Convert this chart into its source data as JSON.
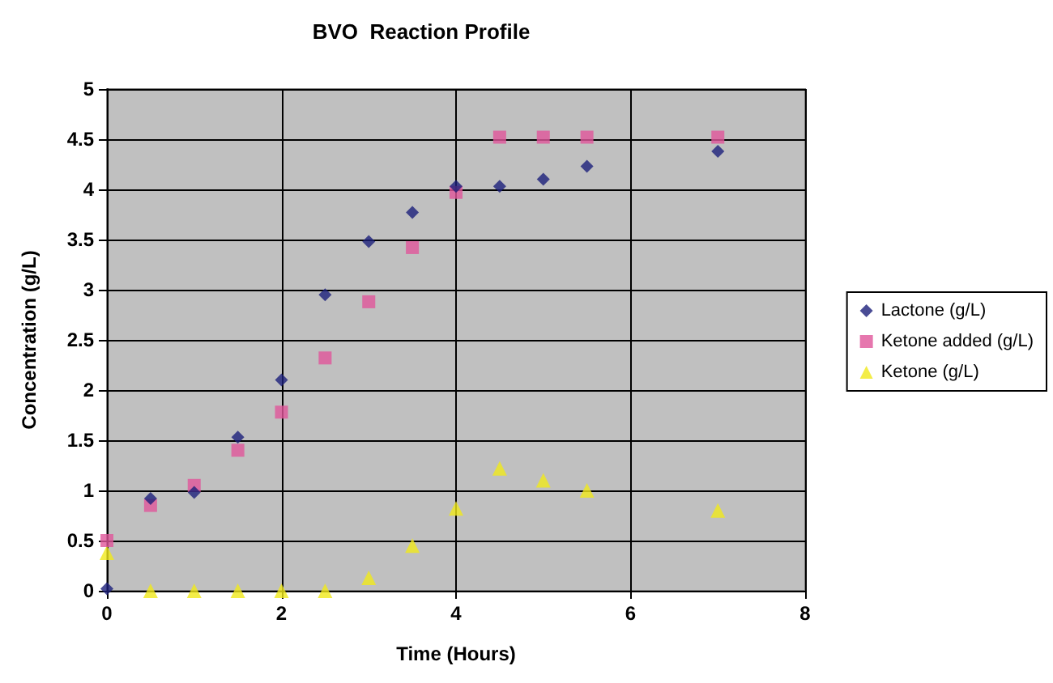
{
  "chart_data": {
    "type": "scatter",
    "title": "BVO  Reaction Profile",
    "xlabel": "Time (Hours)",
    "ylabel": "Concentration (g/L)",
    "x": [
      0,
      0.5,
      1,
      1.5,
      2,
      2.5,
      3,
      3.5,
      4,
      4.5,
      5,
      5.5,
      7
    ],
    "series": [
      {
        "name": "Lactone (g/L)",
        "color": "#1c1f7a",
        "marker": "diamond",
        "values": [
          0.02,
          0.92,
          0.98,
          1.53,
          2.1,
          2.95,
          3.48,
          3.77,
          4.03,
          4.03,
          4.1,
          4.23,
          4.38
        ]
      },
      {
        "name": "Ketone added (g/L)",
        "color": "#e0559a",
        "marker": "square",
        "values": [
          0.5,
          0.85,
          1.05,
          1.4,
          1.78,
          2.32,
          2.88,
          3.42,
          3.97,
          4.52,
          4.52,
          4.52,
          4.52
        ]
      },
      {
        "name": "Ketone (g/L)",
        "color": "#f0e81a",
        "marker": "triangle",
        "values": [
          0.38,
          0,
          0,
          0,
          0,
          0,
          0.13,
          0.45,
          0.82,
          1.22,
          1.1,
          1.0,
          0.8
        ]
      }
    ],
    "xlim": [
      0,
      8
    ],
    "xticks": [
      0,
      2,
      4,
      6,
      8
    ],
    "ylim": [
      0,
      5
    ],
    "yticks": [
      0,
      0.5,
      1,
      1.5,
      2,
      2.5,
      3,
      3.5,
      4,
      4.5,
      5
    ],
    "grid": true,
    "legend": "right"
  }
}
